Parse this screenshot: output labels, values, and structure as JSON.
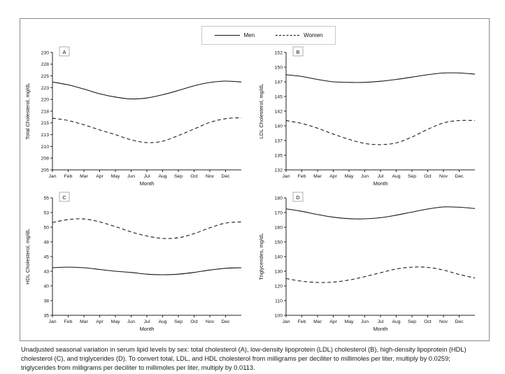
{
  "legend": {
    "men_label": "Men",
    "women_label": "Women"
  },
  "caption": {
    "line1": "Unadjusted seasonal variation in serum lipid levels by sex: total cholesterol (A), low-density lipoprotein (LDL) cholesterol (B), high-density lipoprotein (HDL)",
    "line2": "cholesterol (C), and triglycerides (D). To convert total, LDL, and HDL cholesterol from milligrams per deciliter to millimoles per liter, multiply by 0.0259;",
    "line3": "triglycerides from milligrams per deciliter to millimoles per liter, multiply by 0.0113."
  },
  "chart_data": [
    {
      "panel": "A",
      "type": "line",
      "ylabel": "Total Cholesterol, mg/dL",
      "xlabel": "Month",
      "categories": [
        "Jan",
        "Feb",
        "Mar",
        "Apr",
        "May",
        "Jun",
        "Jul",
        "Aug",
        "Sep",
        "Oct",
        "Nov",
        "Dec"
      ],
      "y_ticks": [
        "230",
        "228",
        "225",
        "223",
        "220",
        "218",
        "215",
        "213",
        "210",
        "208",
        "205"
      ],
      "ylim": [
        205,
        230
      ],
      "grid": false,
      "series": [
        {
          "name": "Men",
          "style": "solid",
          "values": [
            223.7,
            223.1,
            222.2,
            221.2,
            220.5,
            220.1,
            220.3,
            221.0,
            221.9,
            222.9,
            223.6,
            223.9
          ],
          "edge": 223.7
        },
        {
          "name": "Women",
          "style": "dashed",
          "values": [
            216.0,
            215.5,
            214.6,
            213.5,
            212.5,
            211.4,
            210.8,
            211.1,
            212.3,
            213.7,
            215.1,
            215.9
          ],
          "edge": 216.1
        }
      ]
    },
    {
      "panel": "B",
      "type": "line",
      "ylabel": "LDL Cholesterol, mg/dL",
      "xlabel": "Month",
      "categories": [
        "Jan",
        "Feb",
        "Mar",
        "Apr",
        "May",
        "Jun",
        "Jul",
        "Aug",
        "Sep",
        "Oct",
        "Nov",
        "Dec"
      ],
      "y_ticks": [
        "152",
        "150",
        "147",
        "145",
        "142",
        "140",
        "137",
        "135",
        "132"
      ],
      "ylim": [
        132,
        152
      ],
      "grid": false,
      "series": [
        {
          "name": "Men",
          "style": "solid",
          "values": [
            148.2,
            147.9,
            147.4,
            147.0,
            146.9,
            146.9,
            147.1,
            147.4,
            147.8,
            148.2,
            148.5,
            148.5
          ],
          "edge": 148.3
        },
        {
          "name": "Women",
          "style": "dashed",
          "values": [
            140.4,
            139.9,
            139.1,
            138.1,
            137.2,
            136.5,
            136.3,
            136.6,
            137.6,
            138.9,
            140.0,
            140.4
          ],
          "edge": 140.4
        }
      ]
    },
    {
      "panel": "C",
      "type": "line",
      "ylabel": "HDL Cholesterol, mg/dL",
      "xlabel": "Month",
      "categories": [
        "Jan",
        "Feb",
        "Mar",
        "Apr",
        "May",
        "Jun",
        "Jul",
        "Aug",
        "Sep",
        "Oct",
        "Nov",
        "Dec"
      ],
      "y_ticks": [
        "55",
        "53",
        "50",
        "48",
        "45",
        "43",
        "40",
        "38",
        "35"
      ],
      "ylim": [
        35,
        55
      ],
      "grid": false,
      "series": [
        {
          "name": "Men",
          "style": "solid",
          "values": [
            43.1,
            43.2,
            43.1,
            42.8,
            42.5,
            42.3,
            42.0,
            41.9,
            42.0,
            42.3,
            42.7,
            43.0
          ],
          "edge": 43.1
        },
        {
          "name": "Women",
          "style": "dashed",
          "values": [
            50.8,
            51.3,
            51.4,
            50.9,
            50.1,
            49.2,
            48.5,
            48.1,
            48.2,
            48.9,
            49.9,
            50.7
          ],
          "edge": 50.9
        }
      ]
    },
    {
      "panel": "D",
      "type": "line",
      "ylabel": "Triglycerides, mg/dL",
      "xlabel": "Month",
      "categories": [
        "Jan",
        "Feb",
        "Mar",
        "Apr",
        "May",
        "Jun",
        "Jul",
        "Aug",
        "Sep",
        "Oct",
        "Nov",
        "Dec"
      ],
      "y_ticks": [
        "180",
        "170",
        "160",
        "150",
        "140",
        "130",
        "120",
        "110",
        "100"
      ],
      "ylim": [
        100,
        180
      ],
      "grid": false,
      "series": [
        {
          "name": "Men",
          "style": "solid",
          "values": [
            172.5,
            170.8,
            168.6,
            166.8,
            165.8,
            165.7,
            166.5,
            168.2,
            170.3,
            172.4,
            173.8,
            173.6
          ],
          "edge": 172.7
        },
        {
          "name": "Women",
          "style": "dashed",
          "values": [
            125.0,
            123.2,
            122.4,
            122.6,
            124.0,
            126.3,
            129.0,
            131.5,
            132.8,
            132.6,
            130.8,
            127.8
          ],
          "edge": 125.4
        }
      ]
    }
  ]
}
